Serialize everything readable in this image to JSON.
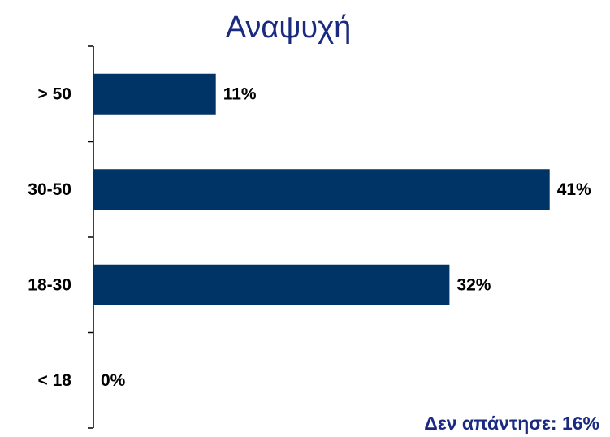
{
  "chart_data": {
    "type": "hbar",
    "title": "Αναψυχή",
    "categories": [
      "> 50",
      "30-50",
      "18-30",
      "< 18"
    ],
    "values": [
      11,
      41,
      32,
      0
    ],
    "value_labels": [
      "11%",
      "41%",
      "32%",
      "0%"
    ],
    "color": "#003366",
    "annotation": "Δεν απάντησε: 16%"
  }
}
